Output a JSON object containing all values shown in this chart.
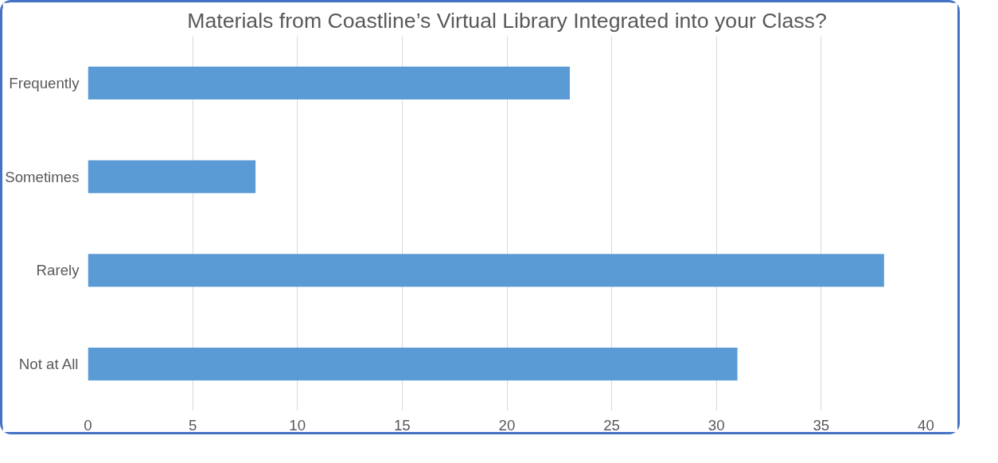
{
  "chart_data": {
    "type": "bar",
    "orientation": "horizontal",
    "title": "Materials from Coastline’s Virtual Library Integrated into your Class?",
    "categories": [
      "Frequently",
      "Sometimes",
      "Rarely",
      "Not at All"
    ],
    "values": [
      23,
      8,
      38,
      31
    ],
    "color": "#5b9bd5",
    "xlim": [
      0,
      40
    ],
    "xticks": [
      0,
      5,
      10,
      15,
      20,
      25,
      30,
      35,
      40
    ],
    "grid": "x"
  }
}
